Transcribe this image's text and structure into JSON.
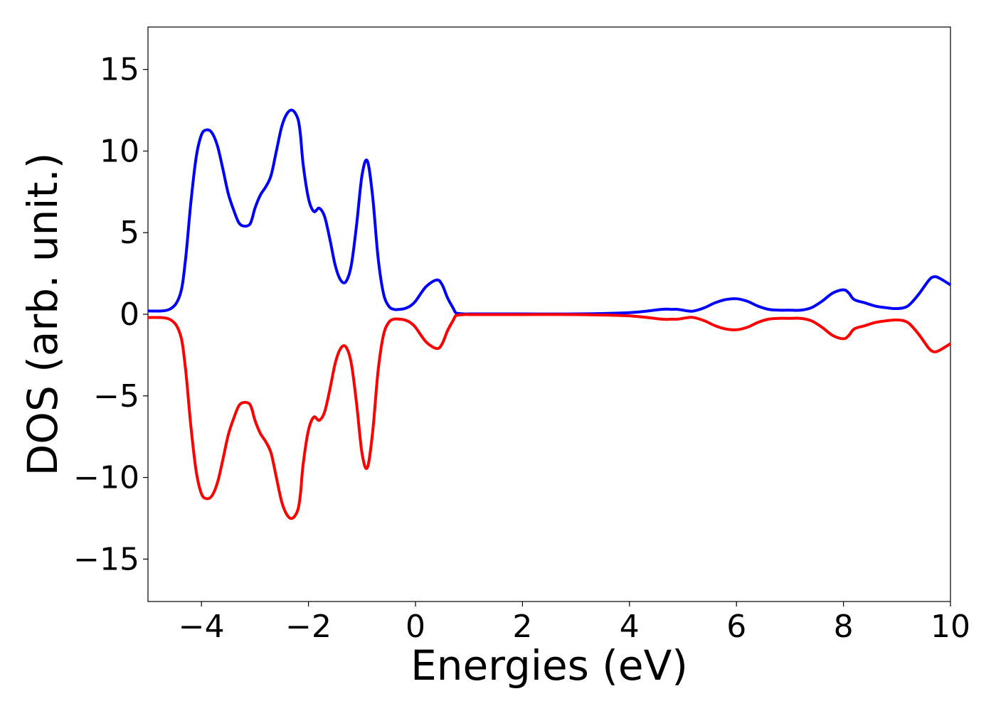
{
  "chart_data": {
    "type": "line",
    "title": "",
    "xlabel": "Energies (eV)",
    "ylabel": "DOS (arb. unit.)",
    "xlim": [
      -5,
      10
    ],
    "ylim": [
      -17.6,
      17.6
    ],
    "grid": false,
    "xticks": [
      -4,
      -2,
      0,
      2,
      4,
      6,
      8,
      10
    ],
    "xtick_labels": [
      "−4",
      "−2",
      "0",
      "2",
      "4",
      "6",
      "8",
      "10"
    ],
    "yticks": [
      15,
      10,
      5,
      0,
      -5,
      -10,
      -15
    ],
    "ytick_labels": [
      "15",
      "10",
      "5",
      "0",
      "−5",
      "−10",
      "−15"
    ],
    "series": [
      {
        "color": "#0000ff",
        "x": [
          -5.0,
          -4.6,
          -4.4,
          -4.3,
          -4.2,
          -4.1,
          -4.0,
          -3.9,
          -3.8,
          -3.7,
          -3.6,
          -3.5,
          -3.4,
          -3.3,
          -3.2,
          -3.1,
          -3.05,
          -3.0,
          -2.9,
          -2.8,
          -2.7,
          -2.6,
          -2.5,
          -2.4,
          -2.3,
          -2.2,
          -2.15,
          -2.1,
          -2.0,
          -1.9,
          -1.8,
          -1.7,
          -1.6,
          -1.5,
          -1.4,
          -1.3,
          -1.2,
          -1.1,
          -1.0,
          -0.9,
          -0.8,
          -0.7,
          -0.6,
          -0.5,
          -0.4,
          -0.3,
          -0.2,
          -0.1,
          0.0,
          0.2,
          0.4,
          0.5,
          0.6,
          0.7,
          0.75,
          0.8,
          0.9,
          1.0,
          1.1,
          1.2,
          2.0,
          3.0,
          4.0,
          4.6,
          4.8,
          4.9,
          5.0,
          5.1,
          5.2,
          5.4,
          5.6,
          5.8,
          6.0,
          6.2,
          6.4,
          6.6,
          6.8,
          7.0,
          7.2,
          7.4,
          7.6,
          7.8,
          8.0,
          8.1,
          8.2,
          8.4,
          8.6,
          8.8,
          9.0,
          9.2,
          9.4,
          9.6,
          9.7,
          9.8,
          10.0
        ],
        "y": [
          0.2,
          0.3,
          1.2,
          3.3,
          6.8,
          9.6,
          11.0,
          11.3,
          11.1,
          10.3,
          8.9,
          7.4,
          6.4,
          5.6,
          5.4,
          5.5,
          5.9,
          6.5,
          7.3,
          7.8,
          8.5,
          10.0,
          11.5,
          12.3,
          12.5,
          12.0,
          11.0,
          9.2,
          7.1,
          6.3,
          6.5,
          6.0,
          4.6,
          3.0,
          2.1,
          2.0,
          3.0,
          5.5,
          8.5,
          9.4,
          7.2,
          3.5,
          1.3,
          0.5,
          0.3,
          0.3,
          0.35,
          0.5,
          0.8,
          1.7,
          2.1,
          1.8,
          1.0,
          0.4,
          0.1,
          0.05,
          0.02,
          0.02,
          0.02,
          0.02,
          0.02,
          0.02,
          0.1,
          0.3,
          0.3,
          0.3,
          0.25,
          0.2,
          0.2,
          0.4,
          0.7,
          0.9,
          0.95,
          0.8,
          0.5,
          0.3,
          0.25,
          0.25,
          0.25,
          0.4,
          0.8,
          1.3,
          1.5,
          1.3,
          0.9,
          0.7,
          0.5,
          0.4,
          0.35,
          0.5,
          1.2,
          2.1,
          2.3,
          2.2,
          1.8
        ]
      },
      {
        "color": "#ff0000",
        "x": [
          -5.0,
          -4.6,
          -4.4,
          -4.3,
          -4.2,
          -4.1,
          -4.0,
          -3.9,
          -3.8,
          -3.7,
          -3.6,
          -3.5,
          -3.4,
          -3.3,
          -3.2,
          -3.1,
          -3.05,
          -3.0,
          -2.9,
          -2.8,
          -2.7,
          -2.6,
          -2.5,
          -2.4,
          -2.3,
          -2.2,
          -2.15,
          -2.1,
          -2.0,
          -1.9,
          -1.8,
          -1.7,
          -1.6,
          -1.5,
          -1.4,
          -1.3,
          -1.2,
          -1.1,
          -1.0,
          -0.9,
          -0.8,
          -0.7,
          -0.6,
          -0.5,
          -0.4,
          -0.3,
          -0.2,
          -0.1,
          0.0,
          0.2,
          0.4,
          0.5,
          0.6,
          0.7,
          0.75,
          0.8,
          0.9,
          1.0,
          1.1,
          1.2,
          2.0,
          3.0,
          4.0,
          4.6,
          4.8,
          4.9,
          5.0,
          5.1,
          5.2,
          5.4,
          5.6,
          5.8,
          6.0,
          6.2,
          6.4,
          6.6,
          6.8,
          7.0,
          7.2,
          7.4,
          7.6,
          7.8,
          8.0,
          8.1,
          8.2,
          8.4,
          8.6,
          8.8,
          9.0,
          9.2,
          9.4,
          9.6,
          9.7,
          9.8,
          10.0
        ],
        "y": [
          -0.2,
          -0.3,
          -1.2,
          -3.3,
          -6.8,
          -9.6,
          -11.0,
          -11.3,
          -11.1,
          -10.3,
          -8.9,
          -7.4,
          -6.4,
          -5.6,
          -5.4,
          -5.5,
          -5.9,
          -6.5,
          -7.3,
          -7.8,
          -8.5,
          -10.0,
          -11.5,
          -12.3,
          -12.5,
          -12.0,
          -11.0,
          -9.2,
          -7.1,
          -6.3,
          -6.5,
          -6.0,
          -4.6,
          -3.0,
          -2.1,
          -2.0,
          -3.0,
          -5.5,
          -8.5,
          -9.4,
          -7.2,
          -3.5,
          -1.3,
          -0.5,
          -0.3,
          -0.3,
          -0.35,
          -0.5,
          -0.8,
          -1.7,
          -2.1,
          -1.8,
          -1.0,
          -0.4,
          -0.1,
          -0.05,
          -0.02,
          -0.02,
          -0.02,
          -0.02,
          -0.02,
          -0.02,
          -0.1,
          -0.3,
          -0.3,
          -0.3,
          -0.25,
          -0.2,
          -0.2,
          -0.4,
          -0.7,
          -0.9,
          -0.95,
          -0.8,
          -0.5,
          -0.3,
          -0.25,
          -0.25,
          -0.25,
          -0.4,
          -0.8,
          -1.3,
          -1.5,
          -1.3,
          -0.9,
          -0.7,
          -0.5,
          -0.4,
          -0.35,
          -0.5,
          -1.2,
          -2.1,
          -2.3,
          -2.2,
          -1.8
        ]
      }
    ]
  }
}
